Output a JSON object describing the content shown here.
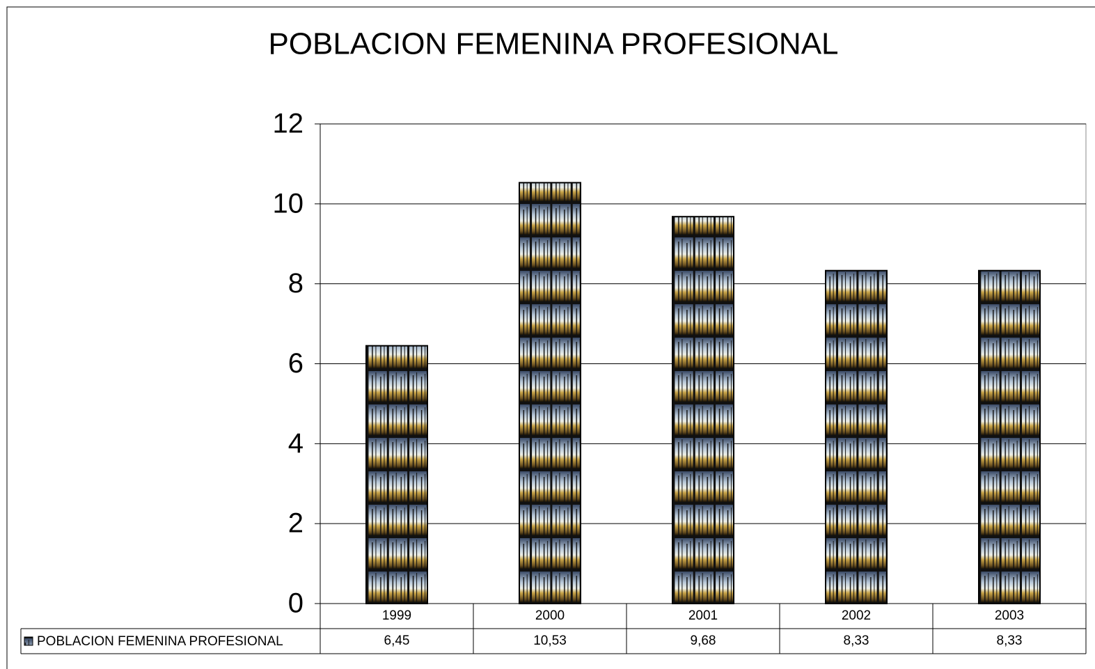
{
  "chart_data": {
    "type": "bar",
    "title": "POBLACION FEMENINA PROFESIONAL",
    "categories": [
      "1999",
      "2000",
      "2001",
      "2002",
      "2003"
    ],
    "series": [
      {
        "name": "POBLACION FEMENINA PROFESIONAL",
        "values": [
          6.45,
          10.53,
          9.68,
          8.33,
          8.33
        ],
        "value_labels": [
          "6,45",
          "10,53",
          "9,68",
          "8,33",
          "8,33"
        ]
      }
    ],
    "ylim": [
      0,
      12
    ],
    "yticks": [
      0,
      2,
      4,
      6,
      8,
      10,
      12
    ],
    "grid": true,
    "data_table": true
  }
}
